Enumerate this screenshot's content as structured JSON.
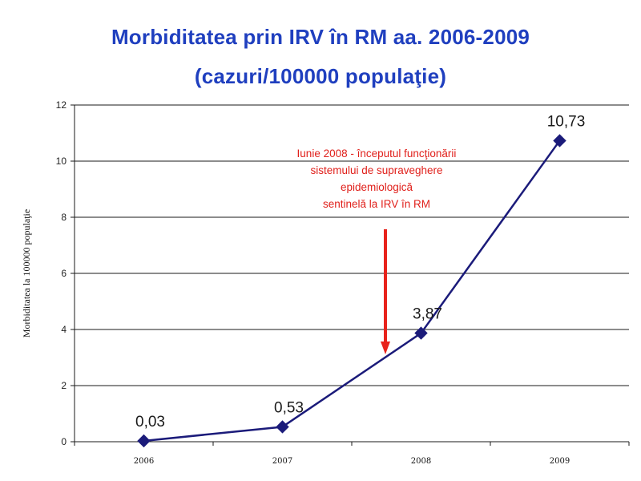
{
  "page": {
    "title_line1": "Morbiditatea prin IRV în RM aa. 2006-2009",
    "title_line2": "(cazuri/100000 populaţie)"
  },
  "chart_data": {
    "type": "line",
    "x": [
      "2006",
      "2007",
      "2008",
      "2009"
    ],
    "series": [
      {
        "values": [
          0.03,
          0.53,
          3.87,
          10.73
        ],
        "labels": [
          "0,03",
          "0,53",
          "3,87",
          "10,73"
        ],
        "color": "#1b1b7a",
        "marker": "diamond"
      }
    ],
    "ylabel": "Morbiditatea la 100000 populaţie",
    "xlabel": "",
    "ylim": [
      0,
      12
    ],
    "yticks": [
      0,
      2,
      4,
      6,
      8,
      10,
      12
    ],
    "grid": true,
    "annotation": {
      "lines": [
        "Iunie 2008 - începutul funcţionării",
        "sistemului de supraveghere",
        "epidemiologică",
        "sentinelă la IRV în RM"
      ],
      "color": "#e0201b",
      "arrow_color": "#e8231c",
      "points_to": "between 2007 and 2008"
    }
  }
}
